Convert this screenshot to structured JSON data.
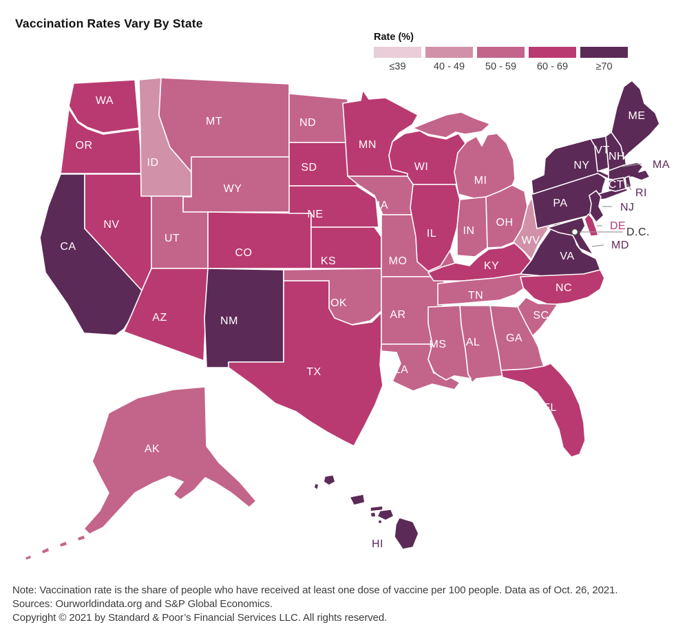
{
  "title": "Vaccination Rates Vary By State",
  "legend": {
    "title": "Rate (%)",
    "buckets": [
      {
        "label": "≤39",
        "color": "#e9cdd9"
      },
      {
        "label": "40 - 49",
        "color": "#d191a8"
      },
      {
        "label": "50 - 59",
        "color": "#c3648b"
      },
      {
        "label": "60 - 69",
        "color": "#b93a70"
      },
      {
        "label": "≥70",
        "color": "#5c2a57"
      }
    ]
  },
  "map": {
    "dc": {
      "label": "D.C.",
      "marker": "white-circle"
    },
    "states": [
      {
        "abbr": "WA",
        "band": "60 - 69"
      },
      {
        "abbr": "OR",
        "band": "60 - 69"
      },
      {
        "abbr": "CA",
        "band": "≥70"
      },
      {
        "abbr": "NV",
        "band": "60 - 69"
      },
      {
        "abbr": "ID",
        "band": "40 - 49"
      },
      {
        "abbr": "MT",
        "band": "50 - 59"
      },
      {
        "abbr": "WY",
        "band": "50 - 59"
      },
      {
        "abbr": "UT",
        "band": "50 - 59"
      },
      {
        "abbr": "AZ",
        "band": "60 - 69"
      },
      {
        "abbr": "NM",
        "band": "≥70"
      },
      {
        "abbr": "CO",
        "band": "60 - 69"
      },
      {
        "abbr": "ND",
        "band": "50 - 59"
      },
      {
        "abbr": "SD",
        "band": "60 - 69"
      },
      {
        "abbr": "NE",
        "band": "60 - 69"
      },
      {
        "abbr": "KS",
        "band": "60 - 69"
      },
      {
        "abbr": "OK",
        "band": "50 - 59"
      },
      {
        "abbr": "TX",
        "band": "60 - 69"
      },
      {
        "abbr": "MN",
        "band": "60 - 69"
      },
      {
        "abbr": "IA",
        "band": "50 - 59"
      },
      {
        "abbr": "MO",
        "band": "50 - 59"
      },
      {
        "abbr": "AR",
        "band": "50 - 59"
      },
      {
        "abbr": "LA",
        "band": "50 - 59"
      },
      {
        "abbr": "WI",
        "band": "60 - 69"
      },
      {
        "abbr": "MI",
        "band": "50 - 59"
      },
      {
        "abbr": "IL",
        "band": "60 - 69"
      },
      {
        "abbr": "IN",
        "band": "50 - 59"
      },
      {
        "abbr": "OH",
        "band": "50 - 59"
      },
      {
        "abbr": "KY",
        "band": "60 - 69"
      },
      {
        "abbr": "TN",
        "band": "50 - 59"
      },
      {
        "abbr": "WV",
        "band": "40 - 49"
      },
      {
        "abbr": "VA",
        "band": "≥70"
      },
      {
        "abbr": "NC",
        "band": "60 - 69"
      },
      {
        "abbr": "SC",
        "band": "50 - 59"
      },
      {
        "abbr": "GA",
        "band": "50 - 59"
      },
      {
        "abbr": "AL",
        "band": "50 - 59"
      },
      {
        "abbr": "MS",
        "band": "50 - 59"
      },
      {
        "abbr": "FL",
        "band": "60 - 69"
      },
      {
        "abbr": "PA",
        "band": "≥70"
      },
      {
        "abbr": "NY",
        "band": "≥70"
      },
      {
        "abbr": "VT",
        "band": "≥70"
      },
      {
        "abbr": "NH",
        "band": "≥70"
      },
      {
        "abbr": "ME",
        "band": "≥70"
      },
      {
        "abbr": "MA",
        "band": "≥70"
      },
      {
        "abbr": "CT",
        "band": "≥70"
      },
      {
        "abbr": "RI",
        "band": "≥70"
      },
      {
        "abbr": "NJ",
        "band": "≥70"
      },
      {
        "abbr": "DE",
        "band": "60 - 69"
      },
      {
        "abbr": "MD",
        "band": "≥70"
      },
      {
        "abbr": "AK",
        "band": "50 - 59"
      },
      {
        "abbr": "HI",
        "band": "≥70"
      }
    ]
  },
  "chart_data": {
    "type": "choropleth",
    "title": "Vaccination Rates Vary By State",
    "legend_title": "Rate (%)",
    "bands": [
      "≤39",
      "40 - 49",
      "50 - 59",
      "60 - 69",
      "≥70"
    ],
    "band_colors": [
      "#e9cdd9",
      "#d191a8",
      "#c3648b",
      "#b93a70",
      "#5c2a57"
    ],
    "states_by_band": {
      "≤39": [],
      "40 - 49": [
        "ID",
        "WV"
      ],
      "50 - 59": [
        "MT",
        "WY",
        "UT",
        "ND",
        "IA",
        "MO",
        "OK",
        "AR",
        "LA",
        "MS",
        "AL",
        "GA",
        "SC",
        "TN",
        "OH",
        "IN",
        "MI",
        "AK"
      ],
      "60 - 69": [
        "WA",
        "OR",
        "NV",
        "AZ",
        "CO",
        "NE",
        "SD",
        "KS",
        "TX",
        "MN",
        "WI",
        "IL",
        "KY",
        "NC",
        "FL",
        "DE"
      ],
      "≥70": [
        "CA",
        "NM",
        "HI",
        "VA",
        "MD",
        "NJ",
        "PA",
        "NY",
        "CT",
        "RI",
        "MA",
        "VT",
        "NH",
        "ME"
      ]
    }
  },
  "footer": {
    "note": "Note: Vaccination rate is the share of people who have received at least one dose of vaccine per 100 people. Data as of Oct. 26, 2021.",
    "sources": "Sources: Ourworldindata.org and S&P Global Economics.",
    "copyright": "Copyright © 2021 by Standard & Poor’s Financial Services LLC. All rights reserved."
  }
}
